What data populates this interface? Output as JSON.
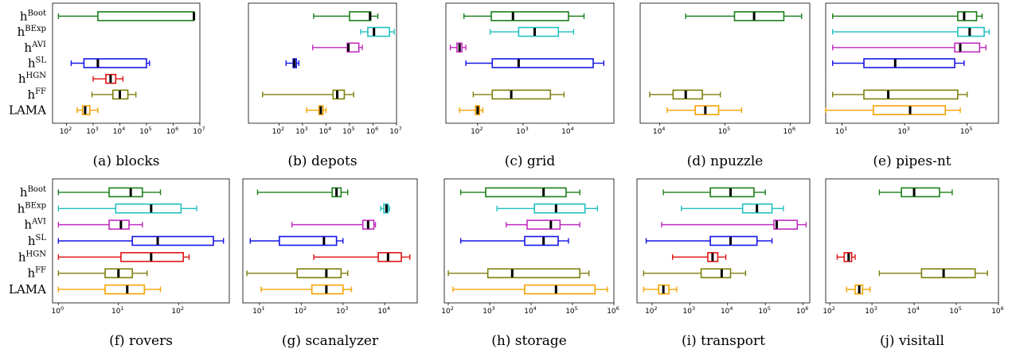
{
  "rows": [
    {
      "base": "h",
      "sup": "Boot",
      "color": "#1a7f1a"
    },
    {
      "base": "h",
      "sup": "BExp",
      "color": "#22c0c0"
    },
    {
      "base": "h",
      "sup": "AVI",
      "color": "#c02cc0"
    },
    {
      "base": "h",
      "sup": "SL",
      "color": "#1515e6"
    },
    {
      "base": "h",
      "sup": "HGN",
      "color": "#e01515"
    },
    {
      "base": "h",
      "sup": "FF",
      "color": "#7f7f0f"
    },
    {
      "base": "LAMA",
      "sup": "",
      "color": "#f5a300"
    }
  ],
  "chart_data": [
    {
      "type": "boxplot",
      "title": "(a) blocks",
      "xscale": "log",
      "xlim": [
        30,
        10000000
      ],
      "xticks": [
        {
          "base": "10",
          "exp": "2",
          "value": 100
        },
        {
          "base": "10",
          "exp": "3",
          "value": 1000
        },
        {
          "base": "10",
          "exp": "4",
          "value": 10000
        },
        {
          "base": "10",
          "exp": "5",
          "value": 100000
        },
        {
          "base": "10",
          "exp": "6",
          "value": 1000000
        },
        {
          "base": "10",
          "exp": "7",
          "value": 10000000
        }
      ],
      "series": [
        {
          "name": "h^Boot",
          "min": 50,
          "q1": 1500,
          "median": 6000000,
          "q3": 6000000,
          "max": 6000000
        },
        {
          "name": "h^BExp",
          "min": null,
          "q1": null,
          "median": null,
          "q3": null,
          "max": null
        },
        {
          "name": "h^AVI",
          "min": null,
          "q1": null,
          "median": null,
          "q3": null,
          "max": null
        },
        {
          "name": "h^SL",
          "min": 150,
          "q1": 450,
          "median": 1500,
          "q3": 100000,
          "max": 130000
        },
        {
          "name": "h^HGN",
          "min": 1000,
          "q1": 3000,
          "median": 4500,
          "q3": 7000,
          "max": 13000
        },
        {
          "name": "h^FF",
          "min": 900,
          "q1": 5500,
          "median": 10000,
          "q3": 20000,
          "max": 40000
        },
        {
          "name": "LAMA",
          "min": 250,
          "q1": 400,
          "median": 500,
          "q3": 750,
          "max": 1500
        }
      ]
    },
    {
      "type": "boxplot",
      "title": "(b) depots",
      "xscale": "log",
      "xlim": [
        5,
        10000000
      ],
      "xticks": [
        {
          "base": "10",
          "exp": "2",
          "value": 100
        },
        {
          "base": "10",
          "exp": "3",
          "value": 1000
        },
        {
          "base": "10",
          "exp": "4",
          "value": 10000
        },
        {
          "base": "10",
          "exp": "5",
          "value": 100000
        },
        {
          "base": "10",
          "exp": "6",
          "value": 1000000
        },
        {
          "base": "10",
          "exp": "7",
          "value": 10000000
        }
      ],
      "series": [
        {
          "name": "h^Boot",
          "min": 3000,
          "q1": 100000,
          "median": 750000,
          "q3": 800000,
          "max": 1600000
        },
        {
          "name": "h^BExp",
          "min": 300000,
          "q1": 600000,
          "median": 1100000,
          "q3": 5000000,
          "max": 8000000
        },
        {
          "name": "h^AVI",
          "min": 2700,
          "q1": 80000,
          "median": 90000,
          "q3": 250000,
          "max": 350000
        },
        {
          "name": "h^SL",
          "min": 200,
          "q1": 400,
          "median": 450,
          "q3": 550,
          "max": 700
        },
        {
          "name": "h^HGN",
          "min": null,
          "q1": null,
          "median": null,
          "q3": null,
          "max": null
        },
        {
          "name": "h^FF",
          "min": 20,
          "q1": 20000,
          "median": 30000,
          "q3": 60000,
          "max": 150000
        },
        {
          "name": "LAMA",
          "min": 1500,
          "q1": 5000,
          "median": 6000,
          "q3": 7500,
          "max": 10000
        }
      ]
    },
    {
      "type": "boxplot",
      "title": "(c) grid",
      "xscale": "log",
      "xlim": [
        20,
        100000
      ],
      "xticks": [
        {
          "base": "10",
          "exp": "2",
          "value": 100
        },
        {
          "base": "10",
          "exp": "3",
          "value": 1000
        },
        {
          "base": "10",
          "exp": "4",
          "value": 10000
        }
      ],
      "series": [
        {
          "name": "h^Boot",
          "min": 50,
          "q1": 200,
          "median": 600,
          "q3": 10000,
          "max": 22000
        },
        {
          "name": "h^BExp",
          "min": 190,
          "q1": 800,
          "median": 1800,
          "q3": 6000,
          "max": 13000
        },
        {
          "name": "h^AVI",
          "min": 25,
          "q1": 35,
          "median": 40,
          "q3": 45,
          "max": 55
        },
        {
          "name": "h^SL",
          "min": 55,
          "q1": 210,
          "median": 800,
          "q3": 35000,
          "max": 60000
        },
        {
          "name": "h^HGN",
          "min": null,
          "q1": null,
          "median": null,
          "q3": null,
          "max": null
        },
        {
          "name": "h^FF",
          "min": 80,
          "q1": 210,
          "median": 550,
          "q3": 4000,
          "max": 8000
        },
        {
          "name": "LAMA",
          "min": 40,
          "q1": 90,
          "median": 100,
          "q3": 110,
          "max": 130
        }
      ]
    },
    {
      "type": "boxplot",
      "title": "(d) npuzzle",
      "xscale": "log",
      "xlim": [
        5000,
        2000000
      ],
      "xticks": [
        {
          "base": "10",
          "exp": "4",
          "value": 10000
        },
        {
          "base": "10",
          "exp": "5",
          "value": 100000
        },
        {
          "base": "10",
          "exp": "6",
          "value": 1000000
        }
      ],
      "series": [
        {
          "name": "h^Boot",
          "min": 25000,
          "q1": 140000,
          "median": 280000,
          "q3": 800000,
          "max": 1500000
        },
        {
          "name": "h^BExp",
          "min": null,
          "q1": null,
          "median": null,
          "q3": null,
          "max": null
        },
        {
          "name": "h^AVI",
          "min": null,
          "q1": null,
          "median": null,
          "q3": null,
          "max": null
        },
        {
          "name": "h^SL",
          "min": null,
          "q1": null,
          "median": null,
          "q3": null,
          "max": null
        },
        {
          "name": "h^HGN",
          "min": null,
          "q1": null,
          "median": null,
          "q3": null,
          "max": null
        },
        {
          "name": "h^FF",
          "min": 7000,
          "q1": 16000,
          "median": 25000,
          "q3": 45000,
          "max": 85000
        },
        {
          "name": "LAMA",
          "min": 13000,
          "q1": 35000,
          "median": 50000,
          "q3": 80000,
          "max": 180000
        }
      ]
    },
    {
      "type": "boxplot",
      "title": "(e) pipes-nt",
      "xscale": "log",
      "xlim": [
        3,
        1000000
      ],
      "xticks": [
        {
          "base": "10",
          "exp": "1",
          "value": 10
        },
        {
          "base": "10",
          "exp": "3",
          "value": 1000
        },
        {
          "base": "10",
          "exp": "5",
          "value": 100000
        }
      ],
      "series": [
        {
          "name": "h^Boot",
          "min": 5,
          "q1": 50000,
          "median": 80000,
          "q3": 200000,
          "max": 300000
        },
        {
          "name": "h^BExp",
          "min": 5,
          "q1": 50000,
          "median": 120000,
          "q3": 350000,
          "max": 500000
        },
        {
          "name": "h^AVI",
          "min": 5,
          "q1": 40000,
          "median": 60000,
          "q3": 250000,
          "max": 400000
        },
        {
          "name": "h^SL",
          "min": 5,
          "q1": 50,
          "median": 500,
          "q3": 40000,
          "max": 80000
        },
        {
          "name": "h^HGN",
          "min": null,
          "q1": null,
          "median": null,
          "q3": null,
          "max": null
        },
        {
          "name": "h^FF",
          "min": 5,
          "q1": 50,
          "median": 300,
          "q3": 50000,
          "max": 100000
        },
        {
          "name": "LAMA",
          "min": 3,
          "q1": 100,
          "median": 1500,
          "q3": 20000,
          "max": 60000
        }
      ]
    },
    {
      "type": "boxplot",
      "title": "(f) rovers",
      "xscale": "log",
      "xlim": [
        0.8,
        700
      ],
      "xticks": [
        {
          "base": "10",
          "exp": "0",
          "value": 1
        },
        {
          "base": "10",
          "exp": "1",
          "value": 10
        },
        {
          "base": "10",
          "exp": "2",
          "value": 100
        }
      ],
      "series": [
        {
          "name": "h^Boot",
          "min": 1,
          "q1": 7,
          "median": 16,
          "q3": 25,
          "max": 50
        },
        {
          "name": "h^BExp",
          "min": 1,
          "q1": 9,
          "median": 35,
          "q3": 110,
          "max": 200
        },
        {
          "name": "h^AVI",
          "min": 1,
          "q1": 7,
          "median": 11,
          "q3": 15,
          "max": 25
        },
        {
          "name": "h^SL",
          "min": 1,
          "q1": 17,
          "median": 45,
          "q3": 380,
          "max": 560
        },
        {
          "name": "h^HGN",
          "min": 1,
          "q1": 11,
          "median": 35,
          "q3": 120,
          "max": 150
        },
        {
          "name": "h^FF",
          "min": 1,
          "q1": 6,
          "median": 10,
          "q3": 17,
          "max": 30
        },
        {
          "name": "LAMA",
          "min": 1,
          "q1": 6,
          "median": 14,
          "q3": 27,
          "max": 50
        }
      ]
    },
    {
      "type": "boxplot",
      "title": "(g) scanalyzer",
      "xscale": "log",
      "xlim": [
        4,
        60000
      ],
      "xticks": [
        {
          "base": "10",
          "exp": "1",
          "value": 10
        },
        {
          "base": "10",
          "exp": "2",
          "value": 100
        },
        {
          "base": "10",
          "exp": "3",
          "value": 1000
        },
        {
          "base": "10",
          "exp": "4",
          "value": 10000
        }
      ],
      "series": [
        {
          "name": "h^Boot",
          "min": 9,
          "q1": 550,
          "median": 700,
          "q3": 900,
          "max": 1300
        },
        {
          "name": "h^BExp",
          "min": 8000,
          "q1": 9500,
          "median": 11000,
          "q3": 12000,
          "max": 13000
        },
        {
          "name": "h^AVI",
          "min": 60,
          "q1": 3000,
          "median": 4000,
          "q3": 5500,
          "max": 6000
        },
        {
          "name": "h^SL",
          "min": 6,
          "q1": 30,
          "median": 350,
          "q3": 700,
          "max": 1000
        },
        {
          "name": "h^HGN",
          "min": 200,
          "q1": 7000,
          "median": 12000,
          "q3": 25000,
          "max": 40000
        },
        {
          "name": "h^FF",
          "min": 5,
          "q1": 80,
          "median": 400,
          "q3": 900,
          "max": 1300
        },
        {
          "name": "LAMA",
          "min": 11,
          "q1": 180,
          "median": 400,
          "q3": 1000,
          "max": 1600
        }
      ]
    },
    {
      "type": "boxplot",
      "title": "(h) storage",
      "xscale": "log",
      "xlim": [
        80,
        1000000
      ],
      "xticks": [
        {
          "base": "10",
          "exp": "2",
          "value": 100
        },
        {
          "base": "10",
          "exp": "3",
          "value": 1000
        },
        {
          "base": "10",
          "exp": "4",
          "value": 10000
        },
        {
          "base": "10",
          "exp": "5",
          "value": 100000
        },
        {
          "base": "10",
          "exp": "6",
          "value": 1000000
        }
      ],
      "series": [
        {
          "name": "h^Boot",
          "min": 200,
          "q1": 800,
          "median": 20000,
          "q3": 70000,
          "max": 150000
        },
        {
          "name": "h^BExp",
          "min": 1500,
          "q1": 12000,
          "median": 40000,
          "q3": 200000,
          "max": 400000
        },
        {
          "name": "h^AVI",
          "min": 2500,
          "q1": 8000,
          "median": 30000,
          "q3": 50000,
          "max": 150000
        },
        {
          "name": "h^SL",
          "min": 200,
          "q1": 7000,
          "median": 20000,
          "q3": 45000,
          "max": 80000
        },
        {
          "name": "h^HGN",
          "min": null,
          "q1": null,
          "median": null,
          "q3": null,
          "max": null
        },
        {
          "name": "h^FF",
          "min": 100,
          "q1": 900,
          "median": 3500,
          "q3": 150000,
          "max": 250000
        },
        {
          "name": "LAMA",
          "min": 130,
          "q1": 7000,
          "median": 40000,
          "q3": 350000,
          "max": 700000
        }
      ]
    },
    {
      "type": "boxplot",
      "title": "(i) transport",
      "xscale": "log",
      "xlim": [
        40,
        1500000
      ],
      "xticks": [
        {
          "base": "10",
          "exp": "2",
          "value": 100
        },
        {
          "base": "10",
          "exp": "3",
          "value": 1000
        },
        {
          "base": "10",
          "exp": "4",
          "value": 10000
        },
        {
          "base": "10",
          "exp": "5",
          "value": 100000
        },
        {
          "base": "10",
          "exp": "6",
          "value": 1000000
        }
      ],
      "series": [
        {
          "name": "h^Boot",
          "min": 200,
          "q1": 3500,
          "median": 12000,
          "q3": 50000,
          "max": 100000
        },
        {
          "name": "h^BExp",
          "min": 600,
          "q1": 25000,
          "median": 60000,
          "q3": 150000,
          "max": 300000
        },
        {
          "name": "h^AVI",
          "min": 180,
          "q1": 170000,
          "median": 200000,
          "q3": 700000,
          "max": 1200000
        },
        {
          "name": "h^SL",
          "min": 70,
          "q1": 3500,
          "median": 12000,
          "q3": 60000,
          "max": 150000
        },
        {
          "name": "h^HGN",
          "min": 350,
          "q1": 3000,
          "median": 4000,
          "q3": 5500,
          "max": 9000
        },
        {
          "name": "h^FF",
          "min": 60,
          "q1": 2000,
          "median": 7000,
          "q3": 12000,
          "max": 30000
        },
        {
          "name": "LAMA",
          "min": 60,
          "q1": 150,
          "median": 200,
          "q3": 280,
          "max": 450
        }
      ]
    },
    {
      "type": "boxplot",
      "title": "(j) visitall",
      "xscale": "log",
      "xlim": [
        80,
        1000000
      ],
      "xticks": [
        {
          "base": "10",
          "exp": "2",
          "value": 100
        },
        {
          "base": "10",
          "exp": "3",
          "value": 1000
        },
        {
          "base": "10",
          "exp": "4",
          "value": 10000
        },
        {
          "base": "10",
          "exp": "5",
          "value": 100000
        },
        {
          "base": "10",
          "exp": "6",
          "value": 1000000
        }
      ],
      "series": [
        {
          "name": "h^Boot",
          "min": 1500,
          "q1": 5000,
          "median": 10000,
          "q3": 40000,
          "max": 80000
        },
        {
          "name": "h^BExp",
          "min": null,
          "q1": null,
          "median": null,
          "q3": null,
          "max": null
        },
        {
          "name": "h^AVI",
          "min": null,
          "q1": null,
          "median": null,
          "q3": null,
          "max": null
        },
        {
          "name": "h^SL",
          "min": null,
          "q1": null,
          "median": null,
          "q3": null,
          "max": null
        },
        {
          "name": "h^HGN",
          "min": 150,
          "q1": 220,
          "median": 280,
          "q3": 330,
          "max": 400
        },
        {
          "name": "h^FF",
          "min": 1500,
          "q1": 15000,
          "median": 50000,
          "q3": 280000,
          "max": 550000
        },
        {
          "name": "LAMA",
          "min": 250,
          "q1": 400,
          "median": 500,
          "q3": 600,
          "max": 900
        }
      ]
    }
  ]
}
